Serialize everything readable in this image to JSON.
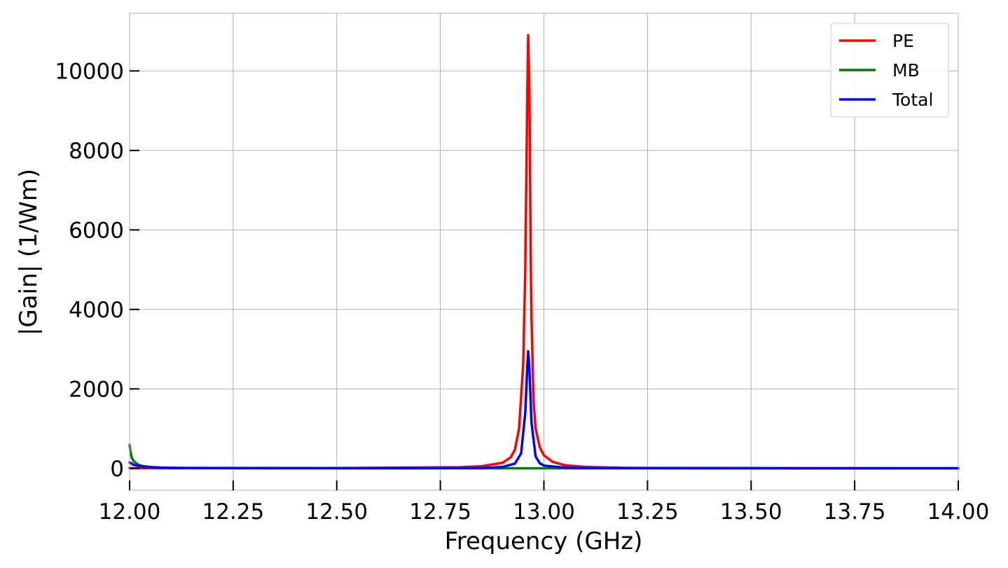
{
  "chart_data": {
    "type": "line",
    "title": "",
    "xlabel": "Frequency (GHz)",
    "ylabel": "|Gain| (1/Wm)",
    "xlim": [
      12.0,
      14.0
    ],
    "ylim": [
      -550,
      11450
    ],
    "xticks": [
      12.0,
      12.25,
      12.5,
      12.75,
      13.0,
      13.25,
      13.5,
      13.75,
      14.0
    ],
    "xtick_labels": [
      "12.00",
      "12.25",
      "12.50",
      "12.75",
      "13.00",
      "13.25",
      "13.50",
      "13.75",
      "14.00"
    ],
    "yticks": [
      0,
      2000,
      4000,
      6000,
      8000,
      10000
    ],
    "ytick_labels": [
      "0",
      "2000",
      "4000",
      "6000",
      "8000",
      "10000"
    ],
    "grid": true,
    "legend_position": "top-right",
    "series": [
      {
        "name": "PE",
        "color": "#ff0000",
        "x": [
          12.0,
          12.5,
          12.8,
          12.85,
          12.9,
          12.92,
          12.93,
          12.94,
          12.95,
          12.955,
          12.96,
          12.962,
          12.965,
          12.968,
          12.97,
          12.975,
          12.98,
          12.99,
          13.0,
          13.02,
          13.05,
          13.1,
          13.2,
          13.5,
          14.0
        ],
        "y": [
          5,
          8,
          30,
          55,
          140,
          280,
          470,
          1000,
          2600,
          5000,
          9500,
          10900,
          9500,
          5500,
          3800,
          1700,
          1000,
          530,
          330,
          170,
          80,
          35,
          12,
          5,
          3
        ]
      },
      {
        "name": "MB",
        "color": "#008000",
        "x": [
          12.0,
          12.002,
          12.005,
          12.01,
          12.02,
          12.03,
          12.05,
          12.08,
          12.12,
          12.2,
          12.5,
          13.0,
          13.5,
          14.0
        ],
        "y": [
          590,
          420,
          280,
          180,
          100,
          65,
          35,
          20,
          12,
          7,
          4,
          3,
          2,
          2
        ]
      },
      {
        "name": "Total",
        "color": "#0000ff",
        "x": [
          12.0,
          12.01,
          12.03,
          12.06,
          12.1,
          12.5,
          12.85,
          12.9,
          12.93,
          12.945,
          12.955,
          12.96,
          12.962,
          12.965,
          12.97,
          12.98,
          12.99,
          13.0,
          13.05,
          13.1,
          13.5,
          14.0
        ],
        "y": [
          150,
          90,
          45,
          22,
          12,
          5,
          12,
          35,
          120,
          380,
          1400,
          2600,
          2950,
          2500,
          1150,
          300,
          130,
          70,
          20,
          10,
          4,
          3
        ]
      }
    ]
  }
}
